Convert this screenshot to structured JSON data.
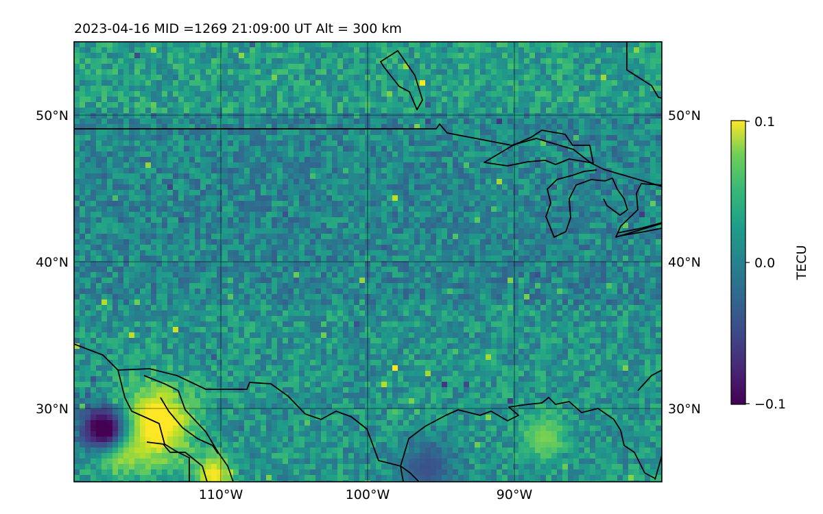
{
  "title": "2023-04-16  MID =1269    21:09:00  UT  Alt = 300 km",
  "map": {
    "lon_ticks": [
      "110°W",
      "100°W",
      "90°W"
    ],
    "lat_ticks": [
      "50°N",
      "40°N",
      "30°N"
    ],
    "gridlines": true,
    "coastlines": true,
    "borders": true
  },
  "colorbar": {
    "label": "TECU",
    "colormap": "viridis",
    "ticks": [
      "0.1",
      "0.0",
      "−0.1"
    ],
    "min": -0.1,
    "max": 0.1
  },
  "chart_data": {
    "type": "heatmap",
    "title": "2023-04-16  MID =1269    21:09:00  UT  Alt = 300 km",
    "lon_range": [
      -120,
      -80
    ],
    "lat_range": [
      25,
      55
    ],
    "value_range": [
      -0.1,
      0.1
    ],
    "unit": "TECU",
    "colormap": "viridis",
    "xtick_values": [
      -110,
      -100,
      -90
    ],
    "ytick_values": [
      30,
      40,
      50
    ],
    "features": [
      {
        "region": "north of 50°N",
        "value": 0.01
      },
      {
        "region": "central plains",
        "value": -0.01
      },
      {
        "region": "northern Mexico near 29°N 115°W",
        "value": 0.1
      },
      {
        "region": "northern Mexico near 28°N 118°W",
        "value": -0.1
      },
      {
        "region": "Gulf of Mexico coast near 28°N 88°W",
        "value": 0.06
      }
    ]
  }
}
